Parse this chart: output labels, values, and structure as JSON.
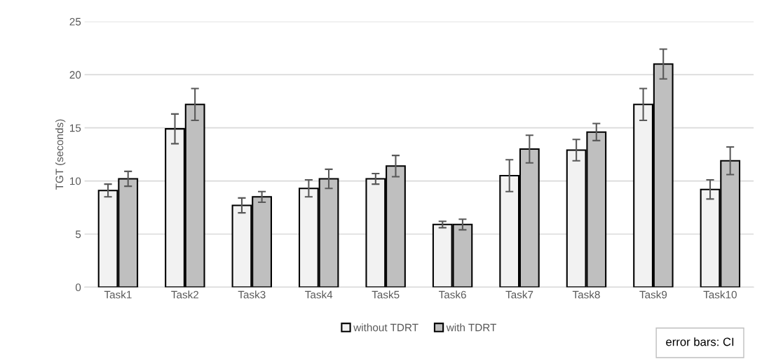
{
  "chart_data": {
    "type": "bar",
    "ylabel": "TGT (seconds)",
    "categories": [
      "Task1",
      "Task2",
      "Task3",
      "Task4",
      "Task5",
      "Task6",
      "Task7",
      "Task8",
      "Task9",
      "Task10"
    ],
    "series": [
      {
        "name": "without TDRT",
        "color": "#f2f2f2",
        "values": [
          9.1,
          14.9,
          7.7,
          9.3,
          10.2,
          5.9,
          10.5,
          12.9,
          17.2,
          9.2
        ],
        "errors": [
          0.6,
          1.4,
          0.7,
          0.8,
          0.5,
          0.3,
          1.5,
          1.0,
          1.5,
          0.9
        ]
      },
      {
        "name": "with TDRT",
        "color": "#bfbfbf",
        "values": [
          10.2,
          17.2,
          8.5,
          10.2,
          11.4,
          5.9,
          13.0,
          14.6,
          21.0,
          11.9
        ],
        "errors": [
          0.7,
          1.5,
          0.5,
          0.9,
          1.0,
          0.5,
          1.3,
          0.8,
          1.4,
          1.3
        ]
      }
    ],
    "ylim": [
      0,
      25
    ],
    "yticks": [
      0,
      5,
      10,
      15,
      20,
      25
    ],
    "grid": "y",
    "legend": "bottom",
    "annotations": [
      "error bars: CI"
    ]
  }
}
